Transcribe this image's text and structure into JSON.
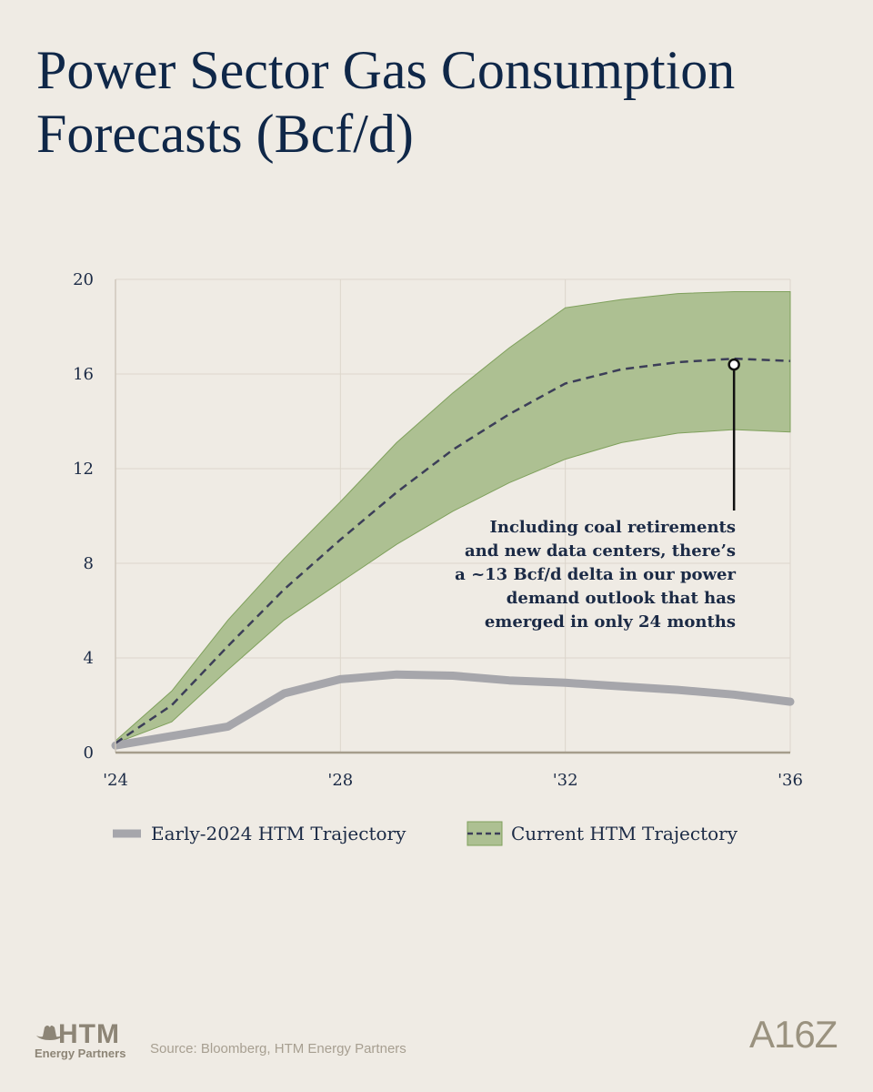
{
  "title": "Power Sector Gas Consumption Forecasts (Bcf/d)",
  "chart_data": {
    "type": "area",
    "title": "Power Sector Gas Consumption Forecasts (Bcf/d)",
    "x_ticks": [
      {
        "value": 2024,
        "label": "'24"
      },
      {
        "value": 2028,
        "label": "'28"
      },
      {
        "value": 2032,
        "label": "'32"
      },
      {
        "value": 2036,
        "label": "'36"
      }
    ],
    "y_ticks": [
      0,
      4,
      8,
      12,
      16,
      20
    ],
    "xlim": [
      2024,
      2036
    ],
    "ylim": [
      0,
      20
    ],
    "grid": true,
    "series": [
      {
        "name": "Early-2024 HTM Trajectory",
        "style": "thick-solid",
        "color": "#a6a6ab",
        "x": [
          2024,
          2025,
          2026,
          2027,
          2028,
          2029,
          2030,
          2031,
          2032,
          2033,
          2034,
          2035,
          2036
        ],
        "values": [
          0.3,
          0.7,
          1.1,
          2.5,
          3.1,
          3.3,
          3.25,
          3.05,
          2.95,
          2.8,
          2.65,
          2.45,
          2.15
        ]
      },
      {
        "name": "Current HTM Trajectory",
        "style": "dashed-with-band",
        "color": "#3c3e58",
        "band_color": "#adc092",
        "x": [
          2024,
          2025,
          2026,
          2027,
          2028,
          2029,
          2030,
          2031,
          2032,
          2033,
          2034,
          2035,
          2036
        ],
        "values": [
          0.4,
          2.0,
          4.5,
          6.9,
          9.0,
          11.0,
          12.8,
          14.3,
          15.6,
          16.2,
          16.5,
          16.65,
          16.55
        ],
        "band_upper": [
          0.5,
          2.6,
          5.6,
          8.2,
          10.6,
          13.1,
          15.2,
          17.1,
          18.8,
          19.15,
          19.4,
          19.48,
          19.48
        ],
        "band_lower": [
          0.4,
          1.3,
          3.5,
          5.6,
          7.2,
          8.8,
          10.2,
          11.4,
          12.4,
          13.1,
          13.5,
          13.65,
          13.55
        ]
      }
    ],
    "annotation": {
      "x": 2035,
      "y": 16.4,
      "lines": [
        "Including coal retirements",
        "and new data centers, there’s",
        "a ~13 Bcf/d delta in our power",
        "demand outlook that has",
        "emerged in only 24 months"
      ]
    },
    "legend": [
      {
        "label": "Early-2024 HTM Trajectory",
        "series": 0
      },
      {
        "label": "Current HTM Trajectory",
        "series": 1
      }
    ]
  },
  "footer": {
    "logo_main": "HTM",
    "logo_sub": "Energy Partners",
    "source": "Source: Bloomberg, HTM Energy Partners",
    "brand": "A16Z"
  }
}
